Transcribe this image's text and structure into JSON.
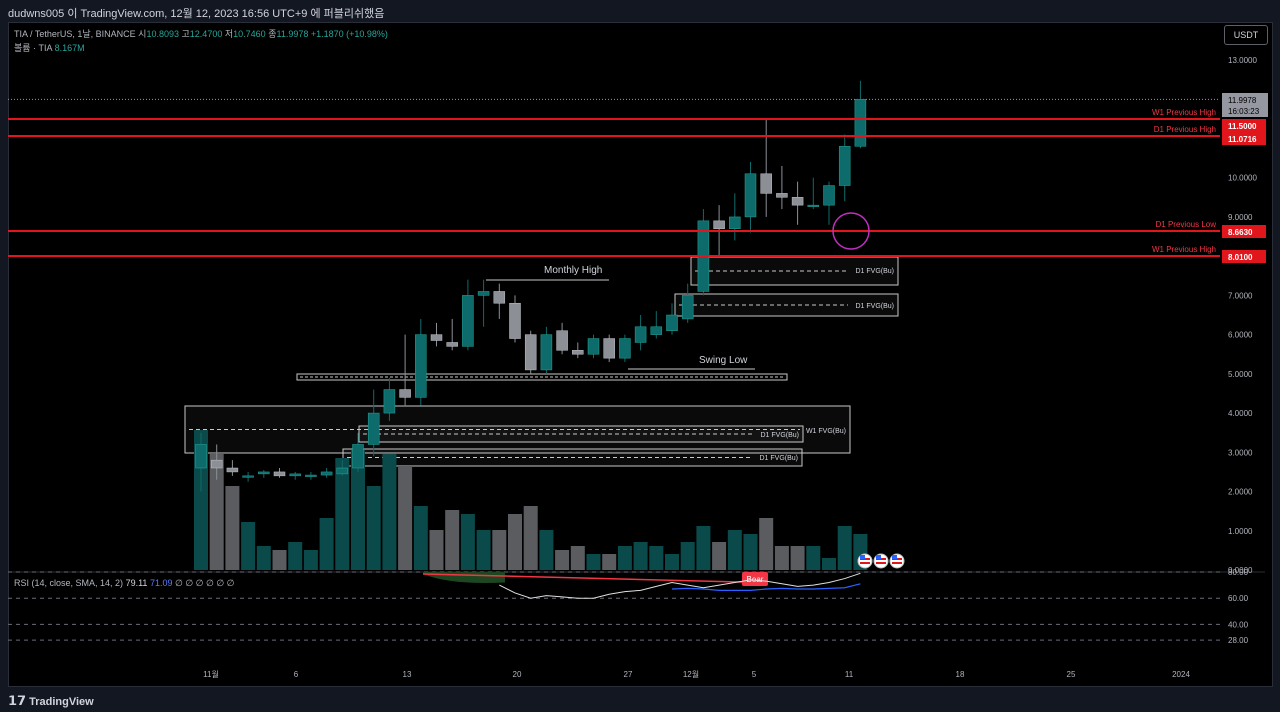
{
  "header": {
    "publish_line": "dudwns005 이 TradingView.com, 12월 12, 2023 16:56 UTC+9 에 퍼블리쉬했음"
  },
  "legend": {
    "symbol": "TIA / TetherUS, 1날, BINANCE",
    "open_label": "시",
    "open": "10.8093",
    "high_label": "고",
    "high": "12.4700",
    "low_label": "저",
    "low": "10.7460",
    "close_label": "종",
    "close": "11.9978",
    "change": "+1.1870 (+10.98%)",
    "volume_label": "볼륨 · TIA",
    "volume": "8.167M"
  },
  "currency_button": "USDT",
  "price_axis": {
    "ticks": [
      "13.0000",
      "10.0000",
      "9.0000",
      "7.0000",
      "6.0000",
      "5.0000",
      "4.0000",
      "3.0000",
      "2.0000",
      "1.0000",
      "0.0000"
    ],
    "current_price": "11.9978",
    "countdown": "16:03:23"
  },
  "levels": [
    {
      "label": "W1 Previous High",
      "price": "11.5000"
    },
    {
      "label": "D1 Previous High",
      "price": "11.0716"
    },
    {
      "label": "D1 Previous Low",
      "price": "8.6630"
    },
    {
      "label": "W1 Previous High",
      "price": "8.0100"
    }
  ],
  "annotations": {
    "monthly_high": "Monthly High",
    "swing_low": "Swing Low",
    "fvg_d1_a": "D1 FVG(Bu)",
    "fvg_d1_b": "D1 FVG(Bu)",
    "fvg_w1": "W1 FVG(Bu)",
    "fvg_d1_c": "D1 FVG(Bu)",
    "fvg_d1_d": "D1 FVG(Bu)"
  },
  "rsi": {
    "legend": "RSI (14, close, SMA, 14, 2)",
    "value": "79.11",
    "sma": "71.09",
    "nulls": "∅ ∅ ∅ ∅ ∅ ∅",
    "ticks": [
      "80.00",
      "60.00",
      "40.00",
      "28.00"
    ],
    "bear_label": "Bear",
    "values": [
      null,
      null,
      null,
      null,
      null,
      null,
      null,
      null,
      null,
      null,
      null,
      null,
      null,
      null,
      null,
      null,
      null,
      null,
      null,
      70,
      64,
      60,
      62,
      61,
      60,
      60,
      63,
      65,
      66,
      69,
      72,
      70,
      68,
      70,
      72,
      74,
      73,
      71,
      69,
      70,
      72,
      75,
      79
    ],
    "sma_values": [
      null,
      null,
      null,
      null,
      null,
      null,
      null,
      null,
      null,
      null,
      null,
      null,
      null,
      null,
      null,
      null,
      null,
      null,
      null,
      null,
      null,
      null,
      null,
      null,
      null,
      null,
      null,
      null,
      null,
      null,
      67,
      67.5,
      67,
      66,
      66,
      66,
      67,
      67.5,
      67,
      67,
      67.5,
      68,
      71
    ]
  },
  "time_axis": [
    "11월",
    "6",
    "13",
    "20",
    "27",
    "12월",
    "5",
    "11",
    "18",
    "25",
    "2024"
  ],
  "chart_data": {
    "type": "candlestick",
    "candles": [
      {
        "o": 2.6,
        "h": 3.5,
        "l": 2.0,
        "c": 3.2
      },
      {
        "o": 2.8,
        "h": 3.2,
        "l": 2.3,
        "c": 2.6
      },
      {
        "o": 2.6,
        "h": 2.8,
        "l": 2.4,
        "c": 2.5
      },
      {
        "o": 2.4,
        "h": 2.5,
        "l": 2.25,
        "c": 2.4
      },
      {
        "o": 2.45,
        "h": 2.55,
        "l": 2.35,
        "c": 2.5
      },
      {
        "o": 2.5,
        "h": 2.6,
        "l": 2.35,
        "c": 2.4
      },
      {
        "o": 2.4,
        "h": 2.5,
        "l": 2.3,
        "c": 2.45
      },
      {
        "o": 2.4,
        "h": 2.5,
        "l": 2.3,
        "c": 2.42
      },
      {
        "o": 2.42,
        "h": 2.6,
        "l": 2.35,
        "c": 2.5
      },
      {
        "o": 2.45,
        "h": 2.8,
        "l": 2.4,
        "c": 2.6
      },
      {
        "o": 2.6,
        "h": 3.5,
        "l": 2.5,
        "c": 3.2
      },
      {
        "o": 3.2,
        "h": 4.6,
        "l": 2.9,
        "c": 4.0
      },
      {
        "o": 4.0,
        "h": 4.9,
        "l": 3.8,
        "c": 4.6
      },
      {
        "o": 4.6,
        "h": 6.0,
        "l": 4.2,
        "c": 4.4
      },
      {
        "o": 4.4,
        "h": 6.4,
        "l": 4.2,
        "c": 6.0
      },
      {
        "o": 6.0,
        "h": 6.3,
        "l": 5.7,
        "c": 5.85
      },
      {
        "o": 5.8,
        "h": 6.4,
        "l": 5.6,
        "c": 5.7
      },
      {
        "o": 5.7,
        "h": 7.4,
        "l": 5.6,
        "c": 7.0
      },
      {
        "o": 7.0,
        "h": 7.4,
        "l": 6.2,
        "c": 7.1
      },
      {
        "o": 7.1,
        "h": 7.3,
        "l": 6.4,
        "c": 6.8
      },
      {
        "o": 6.8,
        "h": 7.0,
        "l": 5.8,
        "c": 5.9
      },
      {
        "o": 6.0,
        "h": 6.1,
        "l": 5.0,
        "c": 5.1
      },
      {
        "o": 5.1,
        "h": 6.2,
        "l": 5.0,
        "c": 6.0
      },
      {
        "o": 6.1,
        "h": 6.3,
        "l": 5.5,
        "c": 5.6
      },
      {
        "o": 5.6,
        "h": 5.8,
        "l": 5.4,
        "c": 5.5
      },
      {
        "o": 5.5,
        "h": 6.0,
        "l": 5.4,
        "c": 5.9
      },
      {
        "o": 5.9,
        "h": 6.0,
        "l": 5.3,
        "c": 5.4
      },
      {
        "o": 5.4,
        "h": 6.0,
        "l": 5.3,
        "c": 5.9
      },
      {
        "o": 5.8,
        "h": 6.5,
        "l": 5.6,
        "c": 6.2
      },
      {
        "o": 6.0,
        "h": 6.6,
        "l": 5.9,
        "c": 6.2
      },
      {
        "o": 6.1,
        "h": 6.8,
        "l": 6.0,
        "c": 6.5
      },
      {
        "o": 6.4,
        "h": 7.3,
        "l": 6.3,
        "c": 7.0
      },
      {
        "o": 7.1,
        "h": 9.2,
        "l": 7.0,
        "c": 8.9
      },
      {
        "o": 8.9,
        "h": 9.3,
        "l": 8.0,
        "c": 8.7
      },
      {
        "o": 8.7,
        "h": 9.6,
        "l": 8.4,
        "c": 9.0
      },
      {
        "o": 9.0,
        "h": 10.4,
        "l": 8.6,
        "c": 10.1
      },
      {
        "o": 10.1,
        "h": 11.5,
        "l": 9.0,
        "c": 9.6
      },
      {
        "o": 9.6,
        "h": 10.3,
        "l": 9.2,
        "c": 9.5
      },
      {
        "o": 9.5,
        "h": 9.9,
        "l": 8.8,
        "c": 9.3
      },
      {
        "o": 9.3,
        "h": 10.0,
        "l": 9.2,
        "c": 9.3
      },
      {
        "o": 9.3,
        "h": 9.9,
        "l": 8.8,
        "c": 9.8
      },
      {
        "o": 9.8,
        "h": 11.1,
        "l": 9.4,
        "c": 10.8
      },
      {
        "o": 10.8,
        "h": 12.47,
        "l": 10.75,
        "c": 11.9978
      }
    ],
    "volume": [
      3.5,
      2.9,
      2.1,
      1.2,
      0.6,
      0.5,
      0.7,
      0.5,
      1.3,
      2.8,
      3.0,
      2.1,
      2.9,
      2.6,
      1.6,
      1.0,
      1.5,
      1.4,
      1.0,
      1.0,
      1.4,
      1.6,
      1.0,
      0.5,
      0.6,
      0.4,
      0.4,
      0.6,
      0.7,
      0.6,
      0.4,
      0.7,
      1.1,
      0.7,
      1.0,
      0.9,
      1.3,
      0.6,
      0.6,
      0.6,
      0.3,
      1.1,
      0.9
    ],
    "price_range": [
      0,
      13.5
    ]
  }
}
